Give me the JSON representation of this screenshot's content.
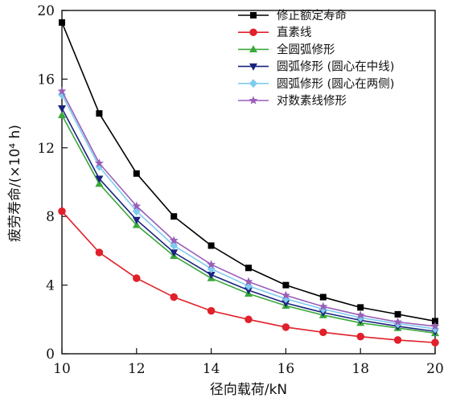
{
  "chart_data": {
    "type": "line",
    "xlabel": "径向载荷/kN",
    "ylabel": "疲劳寿命/(×10⁴ h)",
    "xlim": [
      10,
      20
    ],
    "ylim": [
      0,
      20
    ],
    "xticks": [
      10,
      12,
      14,
      16,
      18,
      20
    ],
    "yticks": [
      0,
      4,
      8,
      12,
      16,
      20
    ],
    "x": [
      10,
      11,
      12,
      13,
      14,
      15,
      16,
      17,
      18,
      19,
      20
    ],
    "legend": "top-right",
    "grid": false,
    "series": [
      {
        "name": "修正额定寿命",
        "color": "#000000",
        "marker": "square",
        "values": [
          19.3,
          14.0,
          10.5,
          8.0,
          6.3,
          5.0,
          4.0,
          3.3,
          2.7,
          2.3,
          1.9
        ]
      },
      {
        "name": "直素线",
        "color": "#e0202a",
        "marker": "circle",
        "values": [
          8.3,
          5.9,
          4.4,
          3.3,
          2.5,
          2.0,
          1.55,
          1.25,
          1.0,
          0.8,
          0.65
        ]
      },
      {
        "name": "全圆弧修形",
        "color": "#3aa83a",
        "marker": "triangle-up",
        "values": [
          13.9,
          9.9,
          7.5,
          5.7,
          4.4,
          3.5,
          2.8,
          2.25,
          1.8,
          1.5,
          1.2
        ]
      },
      {
        "name": "圆弧修形 (圆心在中线)",
        "color": "#1a237e",
        "marker": "triangle-down",
        "values": [
          14.3,
          10.2,
          7.8,
          5.9,
          4.6,
          3.7,
          2.95,
          2.4,
          1.95,
          1.6,
          1.3
        ]
      },
      {
        "name": "圆弧修形 (圆心在两侧)",
        "color": "#7ecbf0",
        "marker": "diamond",
        "values": [
          15.1,
          10.9,
          8.3,
          6.3,
          4.95,
          3.95,
          3.2,
          2.6,
          2.1,
          1.75,
          1.45
        ]
      },
      {
        "name": "对数素线修形",
        "color": "#9a5fb8",
        "marker": "star",
        "values": [
          15.3,
          11.1,
          8.6,
          6.6,
          5.2,
          4.2,
          3.4,
          2.75,
          2.25,
          1.85,
          1.6
        ]
      }
    ]
  }
}
